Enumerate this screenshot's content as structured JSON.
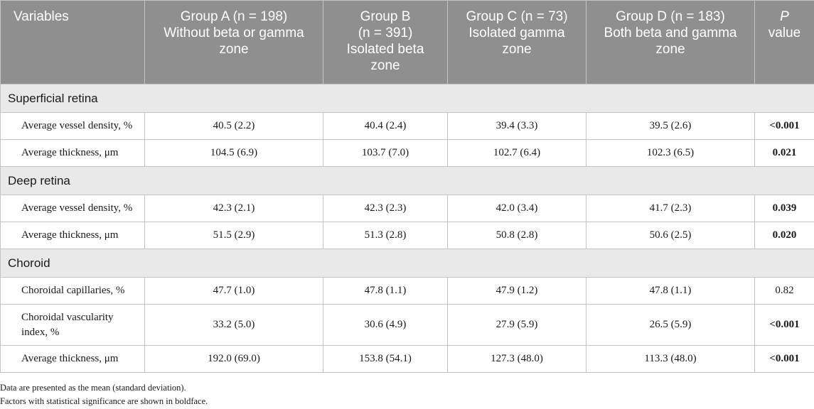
{
  "table": {
    "headers": [
      {
        "lines": [
          "Variables"
        ]
      },
      {
        "lines": [
          "Group A (n = 198)",
          "Without beta or gamma",
          "zone"
        ]
      },
      {
        "lines": [
          "Group B",
          "(n = 391)",
          "Isolated beta",
          "zone"
        ]
      },
      {
        "lines": [
          "Group C (n = 73)",
          "Isolated gamma",
          "zone"
        ]
      },
      {
        "lines": [
          "Group D (n = 183)",
          "Both beta and gamma",
          "zone"
        ]
      }
    ],
    "pvalue_header": {
      "p": "P",
      "value": "value"
    },
    "sections": [
      {
        "title": "Superficial retina",
        "rows": [
          {
            "variable": "Average vessel density, %",
            "values": [
              "40.5 (2.2)",
              "40.4 (2.4)",
              "39.4 (3.3)",
              "39.5 (2.6)"
            ],
            "p": "<0.001",
            "significant": true
          },
          {
            "variable": "Average thickness, μm",
            "values": [
              "104.5 (6.9)",
              "103.7 (7.0)",
              "102.7 (6.4)",
              "102.3 (6.5)"
            ],
            "p": "0.021",
            "significant": true
          }
        ]
      },
      {
        "title": "Deep retina",
        "rows": [
          {
            "variable": "Average vessel density, %",
            "values": [
              "42.3 (2.1)",
              "42.3 (2.3)",
              "42.0 (3.4)",
              "41.7 (2.3)"
            ],
            "p": "0.039",
            "significant": true
          },
          {
            "variable": "Average thickness, μm",
            "values": [
              "51.5 (2.9)",
              "51.3 (2.8)",
              "50.8 (2.8)",
              "50.6 (2.5)"
            ],
            "p": "0.020",
            "significant": true
          }
        ]
      },
      {
        "title": "Choroid",
        "rows": [
          {
            "variable": "Choroidal capillaries, %",
            "values": [
              "47.7 (1.0)",
              "47.8 (1.1)",
              "47.9 (1.2)",
              "47.8 (1.1)"
            ],
            "p": "0.82",
            "significant": false
          },
          {
            "variable": "Choroidal vascularity index, %",
            "values": [
              "33.2 (5.0)",
              "30.6 (4.9)",
              "27.9 (5.9)",
              "26.5 (5.9)"
            ],
            "p": "<0.001",
            "significant": true,
            "tall": true
          },
          {
            "variable": "Average thickness, μm",
            "values": [
              "192.0 (69.0)",
              "153.8 (54.1)",
              "127.3 (48.0)",
              "113.3 (48.0)"
            ],
            "p": "<0.001",
            "significant": true
          }
        ]
      }
    ]
  },
  "footnotes": [
    "Data are presented as the mean (standard deviation).",
    "Factors with statistical significance are shown in boldface."
  ]
}
